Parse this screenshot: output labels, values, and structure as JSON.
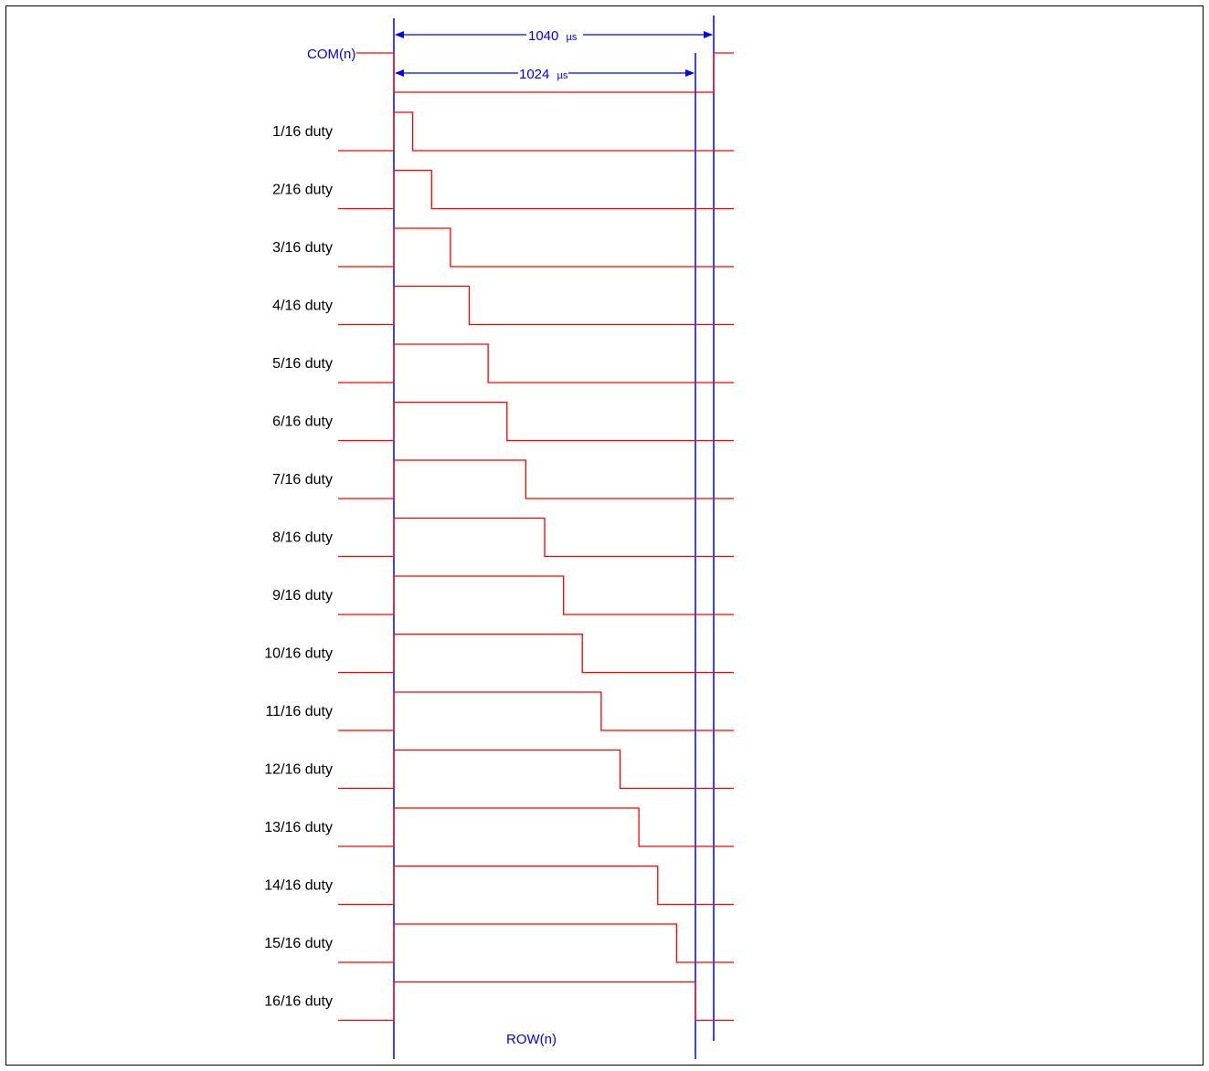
{
  "diagram": {
    "com_label": "COM(n)",
    "row_label": "ROW(n)",
    "dim_outer": {
      "value": "1040",
      "unit": "µs"
    },
    "dim_inner": {
      "value": "1024",
      "unit": "µs"
    },
    "duty_labels": [
      "1/16 duty",
      "2/16 duty",
      "3/16 duty",
      "4/16 duty",
      "5/16 duty",
      "6/16 duty",
      "7/16 duty",
      "8/16 duty",
      "9/16 duty",
      "10/16 duty",
      "11/16 duty",
      "12/16 duty",
      "13/16 duty",
      "14/16 duty",
      "15/16 duty",
      "16/16 duty"
    ],
    "colors": {
      "signal": "#ff0000",
      "timing": "#0000ff",
      "text": "#000000",
      "frame": "#000000"
    }
  }
}
